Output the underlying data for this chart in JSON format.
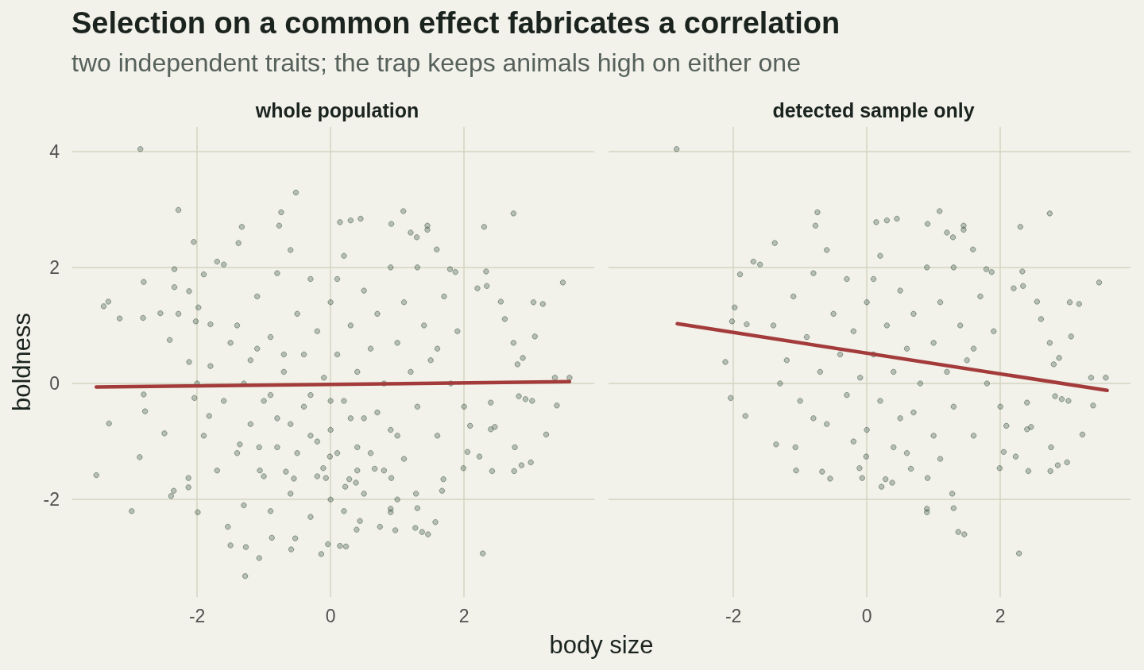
{
  "chart_data": [
    {
      "type": "other",
      "title": "Selection on a common effect fabricates a correlation",
      "subtitle": "two independent traits; the trap keeps animals high on either one"
    },
    {
      "type": "scatter",
      "title": "whole population",
      "xlabel": "body size",
      "ylabel": "boldness",
      "xlim": [
        -3.87,
        3.95
      ],
      "ylim": [
        -3.68,
        4.42
      ],
      "xticks": [
        -2,
        0,
        2
      ],
      "yticks": [
        -2,
        0,
        2,
        4
      ],
      "grid": true,
      "series": [
        {
          "type": "scatter",
          "color": "#2e4a37",
          "marker": "circle",
          "x": [
            -2.85,
            -2.12,
            -2.04,
            -2.02,
            -1.98,
            -1.9,
            -1.82,
            -1.8,
            -1.7,
            -1.6,
            -1.38,
            -1.36,
            -1.07,
            -1.06,
            -0.77,
            -0.74,
            -0.67,
            -0.55,
            -0.11,
            -0.07,
            -0.01,
            0.14,
            0.22,
            0.28,
            0.3,
            0.38,
            0.45,
            0.66,
            0.9,
            0.9,
            0.91,
            0.91,
            1.09,
            1.2,
            1.28,
            1.29,
            1.3,
            1.37,
            1.45,
            1.45,
            1.46,
            1.59,
            1.79,
            1.87,
            1.99,
            2.05,
            2.09,
            2.2,
            2.23,
            2.28,
            2.3,
            2.33,
            2.34,
            2.4,
            2.4,
            2.42,
            2.46,
            2.55,
            2.61,
            2.74,
            2.74,
            2.75,
            2.76,
            2.8,
            2.82,
            2.86,
            2.88,
            2.92,
            3.0,
            3.02,
            3.04,
            3.06,
            3.18,
            3.23,
            3.36,
            3.39,
            3.48,
            3.58,
            -1.4,
            -1.2,
            -1.1,
            -1.0,
            -0.9,
            -0.8,
            -0.7,
            -0.6,
            -0.5,
            -0.4,
            -0.3,
            -0.3,
            -0.2,
            -0.1,
            0.0,
            0.0,
            0.1,
            0.2,
            0.2,
            0.3,
            0.4,
            0.4,
            0.5,
            0.6,
            0.7,
            0.7,
            0.8,
            0.9,
            1.0,
            1.0,
            1.1,
            1.2,
            1.3,
            1.4,
            1.5,
            1.6,
            1.7,
            1.8,
            1.9,
            2.0,
            -0.2,
            0.6,
            1.1,
            -1.3,
            -0.8,
            0.1,
            1.3,
            -0.6,
            0.5,
            1.6,
            -3.51,
            -3.4,
            -3.33,
            -3.32,
            -3.16,
            -2.98,
            -2.86,
            -2.81,
            -2.8,
            -2.8,
            -2.78,
            -2.55,
            -2.49,
            -2.41,
            -2.39,
            -2.35,
            -2.34,
            -2.34,
            -2.28,
            -2.28,
            -2.13,
            -2.13,
            -2.12,
            -2.05,
            -1.99,
            -1.54,
            -1.5,
            -1.33,
            -1.28,
            -1.27,
            -1.07,
            -0.88,
            -0.59,
            -0.53,
            -0.52,
            -0.14,
            -0.04,
            0.14,
            0.23,
            0.39,
            0.44,
            0.74,
            0.97,
            1.27,
            1.57,
            1.69,
            1.67,
            -1.9,
            -1.8,
            -1.7,
            -1.6,
            -1.5,
            -1.4,
            -1.3,
            -1.2,
            -1.0,
            -0.9,
            -0.9,
            -0.8,
            -0.6,
            -0.5,
            -0.4,
            -0.3,
            -0.3,
            -0.2,
            0.0,
            0.1,
            0.2,
            0.5,
            0.8,
            1.0,
            -2.0,
            0.0,
            0.3,
            -0.7,
            -1.1,
            0.9,
            0.4
          ],
          "values": [
            4.04,
            0.37,
            -0.25,
            1.07,
            1.31,
            1.88,
            -0.56,
            1.02,
            2.1,
            2.05,
            2.42,
            -1.05,
            -1.1,
            -1.5,
            2.72,
            2.95,
            -1.52,
            -1.64,
            -1.46,
            -1.63,
            -1.26,
            2.78,
            -1.78,
            -1.65,
            2.81,
            -1.71,
            2.84,
            -1.47,
            -2.16,
            -2.22,
            -1.63,
            2.75,
            2.97,
            2.6,
            -1.9,
            2.52,
            -2.15,
            -2.56,
            2.72,
            2.65,
            -2.6,
            2.31,
            1.97,
            1.92,
            -1.46,
            -1.18,
            -0.73,
            1.64,
            -1.26,
            -2.93,
            2.7,
            1.93,
            1.68,
            -0.33,
            -0.79,
            -1.51,
            -0.75,
            1.41,
            1.11,
            2.93,
            0.7,
            -1.51,
            -1.1,
            0.33,
            -0.22,
            -1.41,
            0.44,
            -0.27,
            -1.36,
            -0.3,
            1.4,
            0.81,
            1.37,
            -0.88,
            0.1,
            -0.38,
            1.74,
            0.1,
            1.0,
            0.4,
            1.5,
            -0.3,
            0.8,
            1.9,
            0.2,
            -0.7,
            1.2,
            0.5,
            -0.2,
            1.8,
            0.9,
            0.1,
            -0.8,
            1.4,
            0.5,
            -0.3,
            2.2,
            1.0,
            0.2,
            -1.1,
            1.6,
            0.6,
            -0.5,
            1.2,
            0.0,
            2.0,
            0.7,
            -0.9,
            1.4,
            0.2,
            -0.4,
            1.0,
            0.4,
            -0.9,
            1.5,
            0.0,
            0.9,
            -0.4,
            -1.0,
            -1.2,
            -1.3,
            0.0,
            -0.6,
            1.8,
            2.0,
            2.3,
            -0.6,
            0.6,
            -1.58,
            1.33,
            1.41,
            -0.69,
            1.12,
            -2.2,
            -1.27,
            1.13,
            1.75,
            -0.19,
            -0.48,
            1.21,
            -0.86,
            0.75,
            -1.94,
            -1.85,
            1.97,
            1.66,
            2.99,
            1.2,
            -1.63,
            -1.79,
            1.59,
            2.44,
            -2.22,
            -2.47,
            -2.79,
            2.7,
            -3.32,
            -2.82,
            -3.01,
            -2.66,
            -2.86,
            -2.67,
            3.29,
            -2.94,
            -2.77,
            -2.8,
            -2.81,
            -2.52,
            -2.37,
            -2.47,
            -2.53,
            -2.49,
            -2.39,
            -1.65,
            -1.85,
            -0.9,
            0.3,
            -1.5,
            -0.3,
            0.7,
            -1.2,
            -2.1,
            -0.7,
            -1.6,
            -2.2,
            -0.2,
            -1.1,
            -1.9,
            -1.2,
            -0.4,
            -2.3,
            -0.9,
            -1.6,
            -2.0,
            -1.2,
            -2.2,
            -1.9,
            -1.5,
            -2.0,
            0.0,
            -0.3,
            -0.6,
            0.5,
            0.6,
            -0.8,
            -1.5
          ]
        },
        {
          "type": "line",
          "color": "#a33b3b",
          "x": [
            -3.51,
            3.58
          ],
          "values": [
            -0.06,
            0.03
          ]
        }
      ]
    },
    {
      "type": "scatter",
      "title": "detected sample only",
      "xlim": [
        -3.87,
        3.95
      ],
      "ylim": [
        -3.68,
        4.42
      ],
      "xticks": [
        -2,
        0,
        2
      ],
      "yticks": [
        -2,
        0,
        2,
        4
      ],
      "grid": true,
      "tick_labels": "x",
      "series": [
        {
          "type": "scatter",
          "color": "#2e4a37",
          "marker": "circle",
          "x": [
            -2.85,
            -2.12,
            -2.04,
            -2.02,
            -1.98,
            -1.9,
            -1.82,
            -1.8,
            -1.7,
            -1.6,
            -1.38,
            -1.36,
            -1.07,
            -1.06,
            -0.77,
            -0.74,
            -0.67,
            -0.55,
            -0.11,
            -0.07,
            -0.01,
            0.14,
            0.22,
            0.28,
            0.3,
            0.38,
            0.45,
            0.66,
            0.9,
            0.9,
            0.91,
            0.91,
            1.09,
            1.2,
            1.28,
            1.29,
            1.3,
            1.37,
            1.45,
            1.45,
            1.46,
            1.59,
            1.79,
            1.87,
            1.99,
            2.05,
            2.09,
            2.2,
            2.23,
            2.28,
            2.3,
            2.33,
            2.34,
            2.4,
            2.4,
            2.42,
            2.46,
            2.55,
            2.61,
            2.74,
            2.74,
            2.75,
            2.76,
            2.8,
            2.82,
            2.86,
            2.88,
            2.92,
            3.0,
            3.02,
            3.04,
            3.06,
            3.18,
            3.23,
            3.36,
            3.39,
            3.48,
            3.58,
            -1.4,
            -1.2,
            -1.1,
            -1.0,
            -0.9,
            -0.8,
            -0.7,
            -0.6,
            -0.5,
            -0.4,
            -0.3,
            -0.3,
            -0.2,
            -0.1,
            0.0,
            0.0,
            0.1,
            0.2,
            0.2,
            0.3,
            0.4,
            0.4,
            0.5,
            0.6,
            0.7,
            0.7,
            0.8,
            0.9,
            1.0,
            1.0,
            1.1,
            1.2,
            1.3,
            1.4,
            1.5,
            1.6,
            1.7,
            1.8,
            1.9,
            2.0,
            -0.2,
            0.6,
            1.1,
            -1.3,
            -0.8,
            0.1,
            1.3,
            -0.6,
            0.5,
            1.6
          ],
          "values": [
            4.04,
            0.37,
            -0.25,
            1.07,
            1.31,
            1.88,
            -0.56,
            1.02,
            2.1,
            2.05,
            2.42,
            -1.05,
            -1.1,
            -1.5,
            2.72,
            2.95,
            -1.52,
            -1.64,
            -1.46,
            -1.63,
            -1.26,
            2.78,
            -1.78,
            -1.65,
            2.81,
            -1.71,
            2.84,
            -1.47,
            -2.16,
            -2.22,
            -1.63,
            2.75,
            2.97,
            2.6,
            -1.9,
            2.52,
            -2.15,
            -2.56,
            2.72,
            2.65,
            -2.6,
            2.31,
            1.97,
            1.92,
            -1.46,
            -1.18,
            -0.73,
            1.64,
            -1.26,
            -2.93,
            2.7,
            1.93,
            1.68,
            -0.33,
            -0.79,
            -1.51,
            -0.75,
            1.41,
            1.11,
            2.93,
            0.7,
            -1.51,
            -1.1,
            0.33,
            -0.22,
            -1.41,
            0.44,
            -0.27,
            -1.36,
            -0.3,
            1.4,
            0.81,
            1.37,
            -0.88,
            0.1,
            -0.38,
            1.74,
            0.1,
            1.0,
            0.4,
            1.5,
            -0.3,
            0.8,
            1.9,
            0.2,
            -0.7,
            1.2,
            0.5,
            -0.2,
            1.8,
            0.9,
            0.1,
            -0.8,
            1.4,
            0.5,
            -0.3,
            2.2,
            1.0,
            0.2,
            -1.1,
            1.6,
            0.6,
            -0.5,
            1.2,
            0.0,
            2.0,
            0.7,
            -0.9,
            1.4,
            0.2,
            -0.4,
            1.0,
            0.4,
            -0.9,
            1.5,
            0.0,
            0.9,
            -0.4,
            -1.0,
            -1.2,
            -1.3,
            0.0,
            -0.6,
            1.8,
            2.0,
            2.3,
            -0.6,
            0.6
          ]
        },
        {
          "type": "line",
          "color": "#a33b3b",
          "x": [
            -2.84,
            3.6
          ],
          "values": [
            1.03,
            -0.12
          ]
        }
      ]
    }
  ]
}
